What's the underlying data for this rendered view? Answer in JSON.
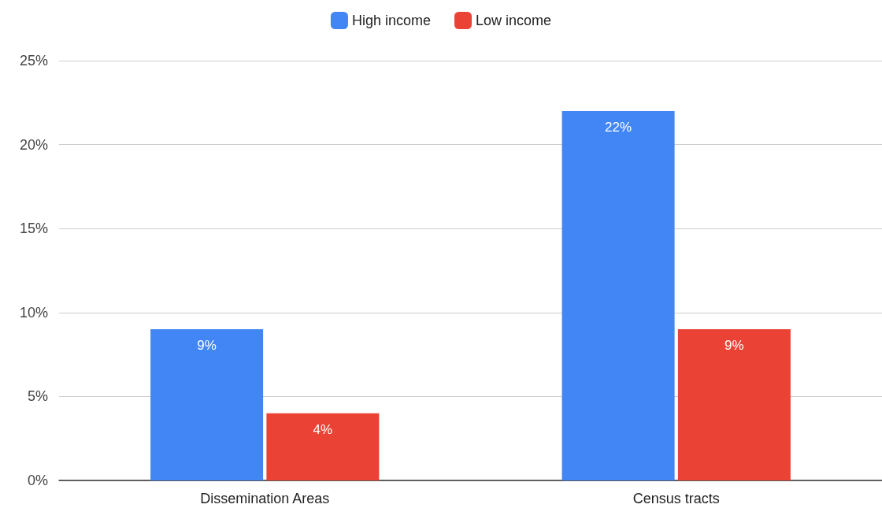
{
  "chart_data": {
    "type": "bar",
    "categories": [
      "Dissemination Areas",
      "Census tracts"
    ],
    "series": [
      {
        "name": "High income",
        "color": "#4285f4",
        "values": [
          9,
          22
        ],
        "value_labels": [
          "9%",
          "22%"
        ]
      },
      {
        "name": "Low income",
        "color": "#ea4335",
        "values": [
          4,
          9
        ],
        "value_labels": [
          "4%",
          "9%"
        ]
      }
    ],
    "ylim": [
      0,
      25
    ],
    "yticks": [
      {
        "value": 0,
        "label": "0%"
      },
      {
        "value": 5,
        "label": "5%"
      },
      {
        "value": 10,
        "label": "10%"
      },
      {
        "value": 15,
        "label": "15%"
      },
      {
        "value": 20,
        "label": "20%"
      },
      {
        "value": 25,
        "label": "25%"
      }
    ],
    "grid": "y",
    "legend": "top"
  }
}
